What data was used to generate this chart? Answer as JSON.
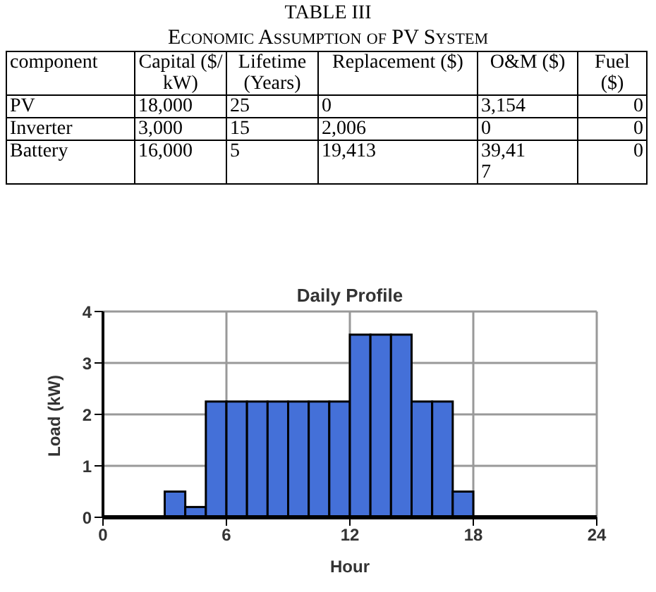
{
  "chart_data": [
    {
      "type": "other",
      "title": "TABLE III",
      "subtitle": "Economic Assumption of PV System",
      "categories": [
        "component",
        "Capital ($/kW)",
        "Lifetime (Years)",
        "Replacement ($)",
        "O&M ($)",
        "Fuel ($)"
      ],
      "annotations": [
        "PV",
        "18,000",
        "25",
        "0",
        "3,154",
        "0",
        "Inverter",
        "3,000",
        "15",
        "2,006",
        "0",
        "0",
        "Battery",
        "16,000",
        "5",
        "19,413",
        "39,417",
        "0"
      ]
    },
    {
      "type": "histogram",
      "title": "Daily Profile",
      "xlabel": "Hour",
      "ylabel": "Load (kW)",
      "bins": [
        0,
        1,
        2,
        3,
        4,
        5,
        6,
        7,
        8,
        9,
        10,
        11,
        12,
        13,
        14,
        15,
        16,
        17,
        18,
        19,
        20,
        21,
        22,
        23,
        24
      ],
      "values": [
        0,
        0,
        0,
        0.5,
        0.2,
        2.25,
        2.25,
        2.25,
        2.25,
        2.25,
        2.25,
        2.25,
        3.55,
        3.55,
        3.55,
        2.25,
        2.25,
        0.5,
        0,
        0,
        0,
        0,
        0,
        0
      ],
      "color": "#4470d8",
      "xlim": [
        0,
        24
      ],
      "xticks": [
        0,
        6,
        12,
        18,
        24
      ],
      "ylim": [
        0,
        4
      ],
      "yticks": [
        0,
        1,
        2,
        3,
        4
      ],
      "grid": true
    }
  ]
}
